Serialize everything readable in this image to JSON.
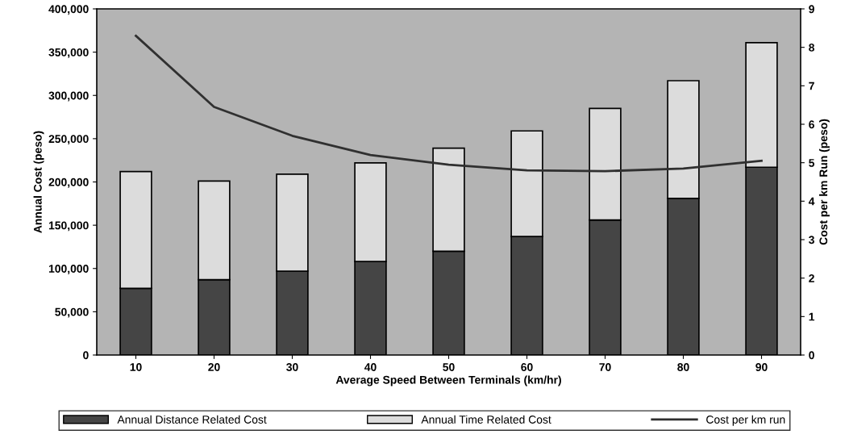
{
  "chart_data": {
    "type": "bar",
    "stacked": true,
    "xlabel": "Average Speed Between Terminals (km/hr)",
    "ylabel": "Annual Cost (peso)",
    "y2label": "Cost per km Run (peso)",
    "categories": [
      "10",
      "20",
      "30",
      "40",
      "50",
      "60",
      "70",
      "80",
      "90"
    ],
    "series": [
      {
        "name": "Annual Distance Related Cost",
        "color": "#454545",
        "values": [
          77000,
          87000,
          97000,
          108000,
          120000,
          137000,
          156000,
          181000,
          217000
        ]
      },
      {
        "name": "Annual Time Related Cost",
        "color": "#dcdcdc",
        "values": [
          135000,
          114000,
          112000,
          114000,
          119000,
          122000,
          129000,
          136000,
          144000
        ]
      },
      {
        "name": "Cost per km run",
        "type": "line",
        "axis": "y2",
        "color": "#303030",
        "values": [
          8.3,
          6.45,
          5.7,
          5.2,
          4.95,
          4.8,
          4.78,
          4.85,
          5.05
        ]
      }
    ],
    "ylim": [
      0,
      400000
    ],
    "yticks": [
      {
        "value": 0,
        "label": "0"
      },
      {
        "value": 50000,
        "label": "50,000"
      },
      {
        "value": 100000,
        "label": "100,000"
      },
      {
        "value": 150000,
        "label": "150,000"
      },
      {
        "value": 200000,
        "label": "200,000"
      },
      {
        "value": 250000,
        "label": "250,000"
      },
      {
        "value": 300000,
        "label": "300,000"
      },
      {
        "value": 350000,
        "label": "350,000"
      },
      {
        "value": 400000,
        "label": "400,000"
      }
    ],
    "y2lim": [
      0,
      9
    ],
    "y2ticks": [
      0,
      1,
      2,
      3,
      4,
      5,
      6,
      7,
      8,
      9
    ],
    "legend": "bottom"
  }
}
